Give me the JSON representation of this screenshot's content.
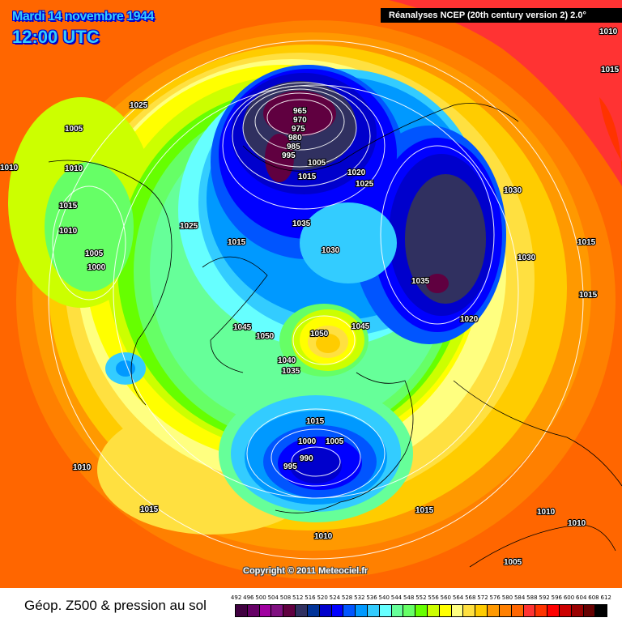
{
  "header": {
    "date": "Mardi 14 novembre 1944",
    "time": "12:00 UTC",
    "source": "Réanalyses NCEP (20th century version 2) 2.0°"
  },
  "map": {
    "copyright": "Copyright © 2011 Meteociel.fr",
    "isobar_labels": [
      "1025",
      "1005",
      "1010",
      "1010",
      "1015",
      "1010",
      "1005",
      "1000",
      "1025",
      "1015",
      "965",
      "970",
      "975",
      "980",
      "985",
      "995",
      "1005",
      "1015",
      "1020",
      "1025",
      "1035",
      "1030",
      "1035",
      "1030",
      "1030",
      "1015",
      "1015",
      "1020",
      "1045",
      "1050",
      "1050",
      "1045",
      "1040",
      "1035",
      "1015",
      "1000",
      "1005",
      "990",
      "995",
      "1010",
      "1015",
      "1015",
      "1010",
      "1010",
      "1010",
      "1005",
      "1010",
      "1015"
    ]
  },
  "legend": {
    "title": "Géop. Z500 & pression au sol",
    "ticks": [
      "492",
      "496",
      "500",
      "504",
      "508",
      "512",
      "516",
      "520",
      "524",
      "528",
      "532",
      "536",
      "540",
      "544",
      "548",
      "552",
      "556",
      "560",
      "564",
      "568",
      "572",
      "576",
      "580",
      "584",
      "588",
      "592",
      "596",
      "600",
      "604",
      "608",
      "612"
    ],
    "colors": [
      "#400040",
      "#660066",
      "#a000a0",
      "#801080",
      "#600040",
      "#303060",
      "#003399",
      "#0000cc",
      "#0000ff",
      "#0055ff",
      "#0099ff",
      "#33ccff",
      "#66ffff",
      "#66ff99",
      "#66ff66",
      "#66ff00",
      "#ccff00",
      "#ffff00",
      "#ffff80",
      "#ffe040",
      "#ffcc00",
      "#ff9900",
      "#ff8000",
      "#ff6600",
      "#ff3333",
      "#ff3300",
      "#ff0000",
      "#cc0000",
      "#990000",
      "#660000",
      "#000000"
    ]
  }
}
